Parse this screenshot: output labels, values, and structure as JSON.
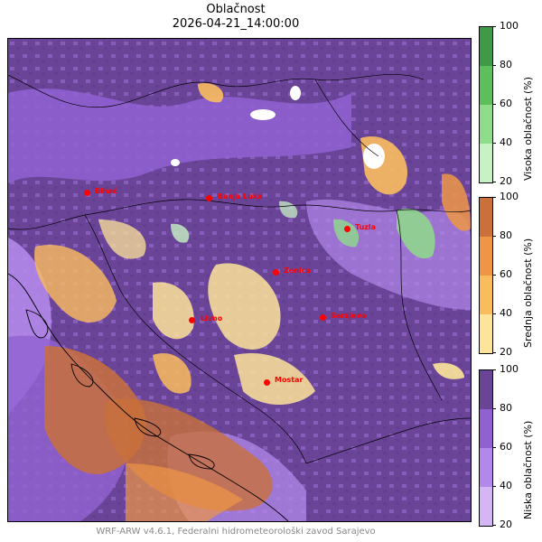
{
  "title": "Oblačnost",
  "datetime": "2026-04-21_14:00:00",
  "footer": "WRF-ARW v4.6.1, Federalni hidrometeorološki zavod Sarajevo",
  "cities": [
    {
      "name": "Bihać"
    },
    {
      "name": "Banja Luka"
    },
    {
      "name": "Tuzla"
    },
    {
      "name": "Zenica"
    },
    {
      "name": "Livno"
    },
    {
      "name": "Sarajevo"
    },
    {
      "name": "Mostar"
    }
  ],
  "colorbars": [
    {
      "id": "visoka",
      "label": "Visoka oblačnost (%)",
      "ticks": [
        "100",
        "80",
        "60",
        "40",
        "20"
      ],
      "colors": [
        "#c7f2c4",
        "#8fdc8a",
        "#5cbf5c",
        "#3f9a47"
      ]
    },
    {
      "id": "srednja",
      "label": "Srednja oblačnost (%)",
      "ticks": [
        "100",
        "80",
        "60",
        "40",
        "20"
      ],
      "colors": [
        "#fde49a",
        "#fbbc5e",
        "#ee9646",
        "#c9703b"
      ]
    },
    {
      "id": "niska",
      "label": "Niska oblačnost (%)",
      "ticks": [
        "100",
        "80",
        "60",
        "40",
        "20"
      ],
      "colors": [
        "#d4b6f5",
        "#b288ea",
        "#9161d2",
        "#6a4597"
      ]
    }
  ]
}
